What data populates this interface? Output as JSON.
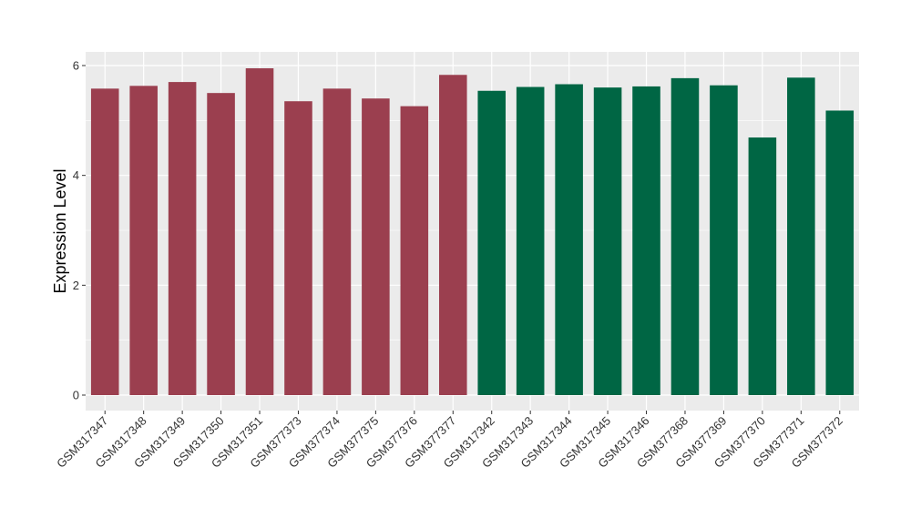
{
  "chart_data": {
    "type": "bar",
    "title": "",
    "xlabel": "",
    "ylabel": "Expression Level",
    "ylim": [
      0,
      6.3
    ],
    "yticks": [
      0,
      2,
      4,
      6
    ],
    "grid": true,
    "legend": "none",
    "colors": {
      "group1": "#9B3F4F",
      "group2": "#006644",
      "panel_background": "#EBEBEB",
      "gridline": "#FFFFFF"
    },
    "categories": [
      "GSM317347",
      "GSM317348",
      "GSM317349",
      "GSM317350",
      "GSM317351",
      "GSM377373",
      "GSM377374",
      "GSM377375",
      "GSM377376",
      "GSM377377",
      "GSM317342",
      "GSM317343",
      "GSM317344",
      "GSM317345",
      "GSM317346",
      "GSM377368",
      "GSM377369",
      "GSM377370",
      "GSM377371",
      "GSM377372"
    ],
    "values": [
      5.58,
      5.63,
      5.7,
      5.5,
      5.95,
      5.35,
      5.58,
      5.4,
      5.26,
      5.83,
      5.54,
      5.61,
      5.66,
      5.6,
      5.62,
      5.77,
      5.64,
      4.69,
      5.78,
      5.18
    ],
    "groups": [
      "group1",
      "group1",
      "group1",
      "group1",
      "group1",
      "group1",
      "group1",
      "group1",
      "group1",
      "group1",
      "group2",
      "group2",
      "group2",
      "group2",
      "group2",
      "group2",
      "group2",
      "group2",
      "group2",
      "group2"
    ]
  }
}
